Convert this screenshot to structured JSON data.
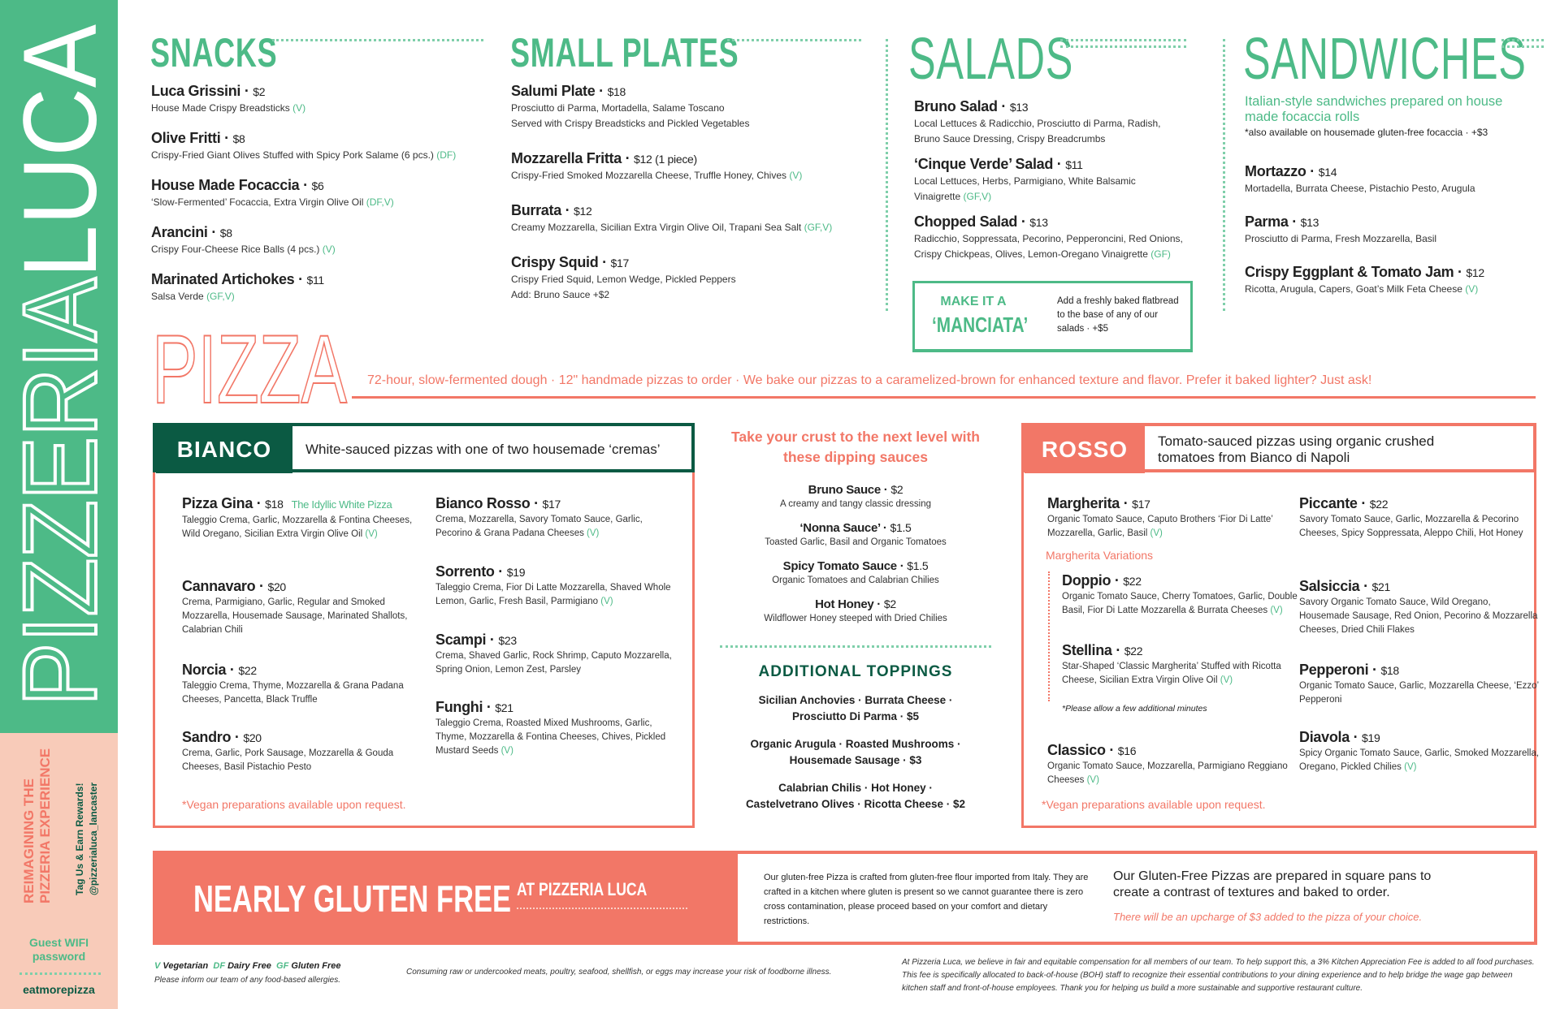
{
  "colors": {
    "green": "#4dba87",
    "dark_green": "#0b5a43",
    "coral": "#f27767",
    "peach": "#f8cbb9"
  },
  "sidebar": {
    "logo_text": "PIZZERIALUCA",
    "tagline_1": "REIMAGINING THE",
    "tagline_2": "PIZZERIA EXPERIENCE",
    "social_1": "Tag Us & Earn Rewards!",
    "social_2": "@pizzerialuca_lancaster",
    "wifi_label_1": "Guest WIFI",
    "wifi_label_2": "password",
    "wifi_password": "eatmorepizza"
  },
  "snacks": {
    "title": "SNACKS",
    "items": [
      {
        "name": "Luca Grissini",
        "price": "$2",
        "desc": "House Made Crispy Breadsticks",
        "tag": "(V)"
      },
      {
        "name": "Olive Fritti",
        "price": "$8",
        "desc": "Crispy-Fried Giant Olives Stuffed with Spicy Pork Salame (6 pcs.)",
        "tag": "(DF)"
      },
      {
        "name": "House Made Focaccia",
        "price": "$6",
        "desc": "‘Slow-Fermented’ Focaccia, Extra Virgin Olive Oil",
        "tag": "(DF,V)"
      },
      {
        "name": "Arancini",
        "price": "$8",
        "desc": "Crispy Four-Cheese Rice Balls (4 pcs.)",
        "tag": "(V)"
      },
      {
        "name": "Marinated Artichokes",
        "price": "$11",
        "desc": "Salsa Verde",
        "tag": "(GF,V)"
      }
    ]
  },
  "small_plates": {
    "title": "SMALL PLATES",
    "items": [
      {
        "name": "Salumi Plate",
        "price": "$18",
        "desc": "Prosciutto di Parma, Mortadella, Salame Toscano\nServed with Crispy Breadsticks and Pickled Vegetables",
        "tag": ""
      },
      {
        "name": "Mozzarella Fritta",
        "price": "$12 (1 piece)",
        "desc": "Crispy-Fried Smoked Mozzarella Cheese, Truffle Honey, Chives",
        "tag": "(V)"
      },
      {
        "name": "Burrata",
        "price": "$12",
        "desc": "Creamy Mozzarella, Sicilian Extra Virgin Olive Oil, Trapani Sea Salt",
        "tag": "(GF,V)"
      },
      {
        "name": "Crispy Squid",
        "price": "$17",
        "desc": "Crispy Fried Squid, Lemon Wedge, Pickled Peppers\nAdd: Bruno Sauce +$2",
        "tag": ""
      }
    ]
  },
  "salads": {
    "title": "SALADS",
    "items": [
      {
        "name": "Bruno Salad",
        "price": "$13",
        "desc": "Local Lettuces & Radicchio, Prosciutto di Parma, Radish,\nBruno Sauce Dressing, Crispy Breadcrumbs",
        "tag": ""
      },
      {
        "name": "‘Cinque Verde’ Salad",
        "price": "$11",
        "desc": "Local Lettuces, Herbs, Parmigiano, White Balsamic\nVinaigrette",
        "tag": "(GF,V)"
      },
      {
        "name": "Chopped Salad",
        "price": "$13",
        "desc": "Radicchio, Soppressata, Pecorino, Pepperoncini, Red Onions,\nCrispy Chickpeas, Olives, Lemon-Oregano Vinaigrette",
        "tag": "(GF)"
      }
    ],
    "manciata": {
      "title_1": "MAKE IT A",
      "title_2": "‘MANCIATA’",
      "desc": "Add a freshly baked flatbread to the base of any of our salads · +$5"
    }
  },
  "sandwiches": {
    "title": "SANDWICHES",
    "intro": "Italian-style sandwiches prepared on house made focaccia rolls",
    "note": "*also available on housemade gluten-free focaccia · +$3",
    "items": [
      {
        "name": "Mortazzo",
        "price": "$14",
        "desc": "Mortadella, Burrata Cheese, Pistachio Pesto, Arugula",
        "tag": ""
      },
      {
        "name": "Parma",
        "price": "$13",
        "desc": "Prosciutto di Parma, Fresh Mozzarella, Basil",
        "tag": ""
      },
      {
        "name": "Crispy Eggplant & Tomato Jam",
        "price": "$12",
        "desc": "Ricotta, Arugula, Capers, Goat’s Milk Feta Cheese",
        "tag": "(V)"
      }
    ]
  },
  "pizza": {
    "title": "PIZZA",
    "tagline": "72-hour, slow-fermented dough · 12\" handmade pizzas to order · We bake our pizzas to a caramelized-brown for enhanced texture and flavor. Prefer it baked lighter? Just ask!"
  },
  "bianco": {
    "label": "BIANCO",
    "desc": "White-sauced pizzas with one of two housemade ‘cremas’",
    "vegan_note": "*Vegan preparations available upon request.",
    "left": [
      {
        "name": "Pizza Gina",
        "price": "$18",
        "sub": "The Idyllic White Pizza",
        "desc": "Taleggio Crema, Garlic, Mozzarella & Fontina Cheeses, Wild Oregano, Sicilian Extra Virgin Olive Oil",
        "tag": "(V)"
      },
      {
        "name": "Cannavaro",
        "price": "$20",
        "desc": "Crema, Parmigiano, Garlic, Regular and Smoked Mozzarella, Housemade Sausage, Marinated Shallots, Calabrian Chili",
        "tag": ""
      },
      {
        "name": "Norcia",
        "price": "$22",
        "desc": "Taleggio Crema, Thyme, Mozzarella & Grana Padana Cheeses, Pancetta, Black Truffle",
        "tag": ""
      },
      {
        "name": "Sandro",
        "price": "$20",
        "desc": "Crema, Garlic, Pork Sausage, Mozzarella & Gouda Cheeses, Basil Pistachio Pesto",
        "tag": ""
      }
    ],
    "right": [
      {
        "name": "Bianco Rosso",
        "price": "$17",
        "desc": "Crema, Mozzarella, Savory Tomato Sauce, Garlic, Pecorino & Grana Padana Cheeses",
        "tag": "(V)"
      },
      {
        "name": "Sorrento",
        "price": "$19",
        "desc": "Taleggio Crema, Fior Di Latte Mozzarella, Shaved Whole Lemon, Garlic, Fresh Basil, Parmigiano",
        "tag": "(V)"
      },
      {
        "name": "Scampi",
        "price": "$23",
        "desc": "Crema, Shaved Garlic, Rock Shrimp, Caputo Mozzarella, Spring Onion, Lemon Zest, Parsley",
        "tag": ""
      },
      {
        "name": "Funghi",
        "price": "$21",
        "desc": "Taleggio Crema, Roasted Mixed Mushrooms, Garlic, Thyme, Mozzarella & Fontina Cheeses, Chives, Pickled Mustard Seeds",
        "tag": "(V)"
      }
    ]
  },
  "sauces": {
    "title": "Take your crust to the next level with these dipping sauces",
    "items": [
      {
        "name": "Bruno Sauce",
        "price": "$2",
        "desc": "A creamy and tangy classic dressing"
      },
      {
        "name": "‘Nonna Sauce’",
        "price": "$1.5",
        "desc": "Toasted Garlic, Basil and Organic Tomatoes"
      },
      {
        "name": "Spicy Tomato Sauce",
        "price": "$1.5",
        "desc": "Organic Tomatoes and Calabrian Chilies"
      },
      {
        "name": "Hot Honey",
        "price": "$2",
        "desc": "Wildflower Honey steeped with Dried Chilies"
      }
    ]
  },
  "toppings": {
    "title": "ADDITIONAL TOPPINGS",
    "groups": [
      {
        "line1": "Sicilian Anchovies · Burrata Cheese ·",
        "line2": "Prosciutto Di Parma · $5"
      },
      {
        "line1": "Organic Arugula · Roasted Mushrooms ·",
        "line2": "Housemade Sausage · $3"
      },
      {
        "line1": "Calabrian Chilis · Hot Honey ·",
        "line2": "Castelvetrano Olives · Ricotta Cheese · $2"
      }
    ]
  },
  "rosso": {
    "label": "ROSSO",
    "desc": "Tomato-sauced pizzas using organic crushed tomatoes from Bianco di Napoli",
    "vegan_note": "*Vegan preparations available upon request.",
    "variations_title": "Margherita Variations",
    "variation_note": "*Please allow a few additional minutes",
    "left": [
      {
        "name": "Margherita",
        "price": "$17",
        "desc": "Organic Tomato Sauce, Caputo Brothers ‘Fior Di Latte’ Mozzarella, Garlic, Basil",
        "tag": "(V)"
      },
      {
        "name": "Classico",
        "price": "$16",
        "desc": "Organic Tomato Sauce, Mozzarella, Parmigiano Reggiano Cheeses",
        "tag": "(V)"
      }
    ],
    "variations": [
      {
        "name": "Doppio",
        "price": "$22",
        "desc": "Organic Tomato Sauce, Cherry Tomatoes, Garlic, Double Basil, Fior Di Latte Mozzarella & Burrata Cheeses",
        "tag": "(V)"
      },
      {
        "name": "Stellina",
        "price": "$22",
        "desc": "Star-Shaped ‘Classic Margherita’ Stuffed with Ricotta Cheese, Sicilian Extra Virgin Olive Oil",
        "tag": "(V)"
      }
    ],
    "right": [
      {
        "name": "Piccante",
        "price": "$22",
        "desc": "Savory Tomato Sauce, Garlic, Mozzarella & Pecorino Cheeses, Spicy Soppressata, Aleppo Chili, Hot Honey",
        "tag": ""
      },
      {
        "name": "Salsiccia",
        "price": "$21",
        "desc": "Savory Organic Tomato Sauce, Wild Oregano, Housemade Sausage, Red Onion, Pecorino & Mozzarella Cheeses, Dried Chili Flakes",
        "tag": ""
      },
      {
        "name": "Pepperoni",
        "price": "$18",
        "desc": "Organic Tomato Sauce, Garlic, Mozzarella Cheese, ‘Ezzo’ Pepperoni",
        "tag": ""
      },
      {
        "name": "Diavola",
        "price": "$19",
        "desc": "Spicy Organic Tomato Sauce, Garlic, Smoked Mozzarella, Oregano, Pickled Chilies",
        "tag": "(V)"
      }
    ]
  },
  "gluten_free": {
    "title": "NEARLY GLUTEN FREE",
    "subtitle": "AT PIZZERIA LUCA",
    "disclaimer": "Our gluten-free Pizza is crafted from gluten-free flour imported from Italy. They are crafted in a kitchen where gluten is present so we cannot guarantee there is zero cross contamination, please proceed based on your comfort and dietary restrictions.",
    "info": "Our Gluten-Free Pizzas are prepared in square pans to create a contrast of textures and baked to order.",
    "upcharge": "There will be an upcharge of $3 added to the pizza of your choice."
  },
  "footer": {
    "legend": [
      {
        "code": "V",
        "label": "Vegetarian"
      },
      {
        "code": "DF",
        "label": "Dairy Free"
      },
      {
        "code": "GF",
        "label": "Gluten Free"
      }
    ],
    "allergy": "Please inform our team of any food-based allergies.",
    "raw_warning": "Consuming raw or undercooked meats, poultry, seafood, shellfish, or eggs may increase your risk of foodborne illness.",
    "fee_note": "At Pizzeria Luca, we believe in fair and equitable compensation for all members of our team. To help support this, a 3% Kitchen Appreciation Fee is added to all food purchases. This fee is specifically allocated to back-of-house (BOH) staff to recognize their essential contributions to your dining experience and to help bridge the wage gap between kitchen staff and front-of-house employees. Thank you for helping us build a more sustainable and supportive restaurant culture."
  }
}
